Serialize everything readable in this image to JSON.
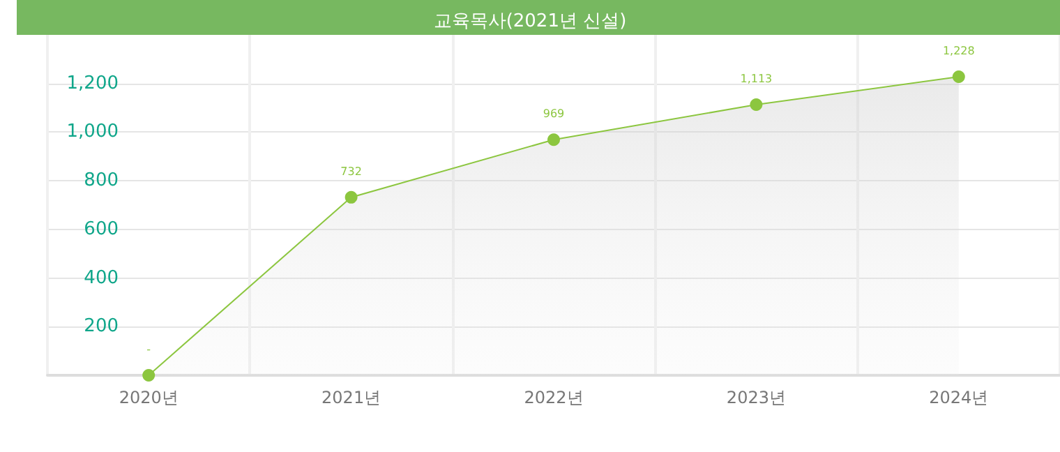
{
  "chart_data": {
    "type": "area",
    "title": "교육목사(2021년 신설)",
    "categories": [
      "2020년",
      "2021년",
      "2022년",
      "2023년",
      "2024년"
    ],
    "series": [
      {
        "color": "#8cc63f",
        "values": [
          0,
          732,
          969,
          1113,
          1228
        ],
        "value_labels": [
          "-",
          "732",
          "969",
          "1,113",
          "1,228"
        ]
      }
    ],
    "ylim": [
      0,
      1400
    ],
    "yticks": [
      {
        "value": 200,
        "label": "200"
      },
      {
        "value": 400,
        "label": "400"
      },
      {
        "value": 600,
        "label": "600"
      },
      {
        "value": 800,
        "label": "800"
      },
      {
        "value": 1000,
        "label": "1,000"
      },
      {
        "value": 1200,
        "label": "1,200"
      }
    ],
    "grid": true,
    "marker": "circle"
  }
}
